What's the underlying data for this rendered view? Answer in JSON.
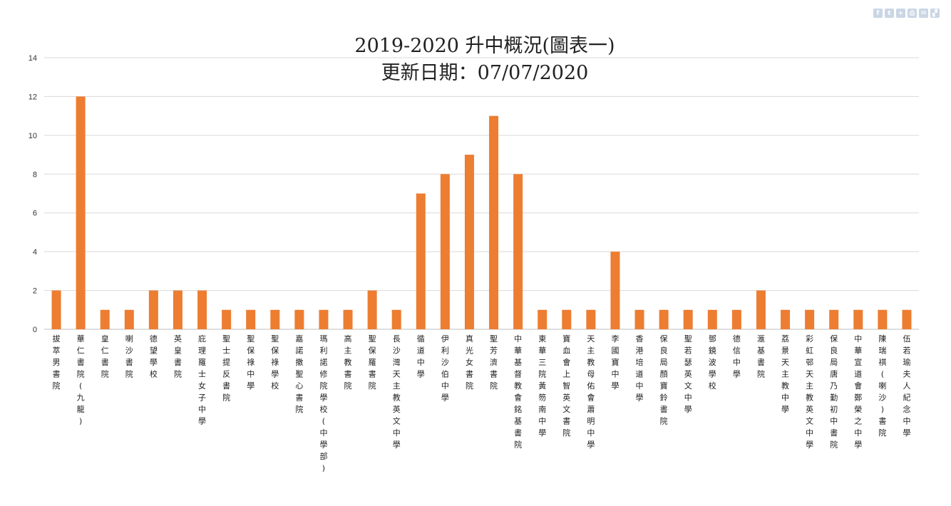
{
  "share_icons": [
    {
      "name": "facebook-icon",
      "glyph": "f"
    },
    {
      "name": "twitter-icon",
      "glyph": "t"
    },
    {
      "name": "add-icon",
      "glyph": "+"
    },
    {
      "name": "print-icon",
      "glyph": "⎙"
    },
    {
      "name": "email-icon",
      "glyph": "✉"
    },
    {
      "name": "share-icon",
      "glyph": "▞"
    }
  ],
  "chart_data": {
    "type": "bar",
    "title": "2019-2020 升中概況(圖表一)",
    "subtitle": "更新日期：07/07/2020",
    "xlabel": "",
    "ylabel": "",
    "ylim": [
      0,
      14
    ],
    "yticks": [
      0,
      2,
      4,
      6,
      8,
      10,
      12,
      14
    ],
    "grid": true,
    "bar_color": "#ed7d31",
    "categories": [
      "拔萃男書院",
      "華仁書院(九龍)",
      "皇仁書院",
      "喇沙書院",
      "德望學校",
      "英皇書院",
      "庇理羅士女子中學",
      "聖士提反書院",
      "聖保祿中學",
      "聖保祿學校",
      "嘉諾撒聖心書院",
      "瑪利諾修院學校(中學部)",
      "高主教書院",
      "聖保羅書院",
      "長沙灣天主教英文中學",
      "循道中學",
      "伊利沙伯中學",
      "真光女書院",
      "聖芳濟書院",
      "中華基督教會銘基書院",
      "東華三院黃笏南中學",
      "寶血會上智英文書院",
      "天主教母佑會蕭明中學",
      "李國寶中學",
      "香港培道中學",
      "保良局顏寶鈴書院",
      "聖若瑟英文中學",
      "鄧鏡波學校",
      "德信中學",
      "滙基書院",
      "荔景天主教中學",
      "彩虹邨天主教英文中學",
      "保良局唐乃勤初中書院",
      "中華宣道會鄭榮之中學",
      "陳瑞祺(喇沙)書院",
      "伍若瑜夫人紀念中學"
    ],
    "values": [
      2,
      12,
      1,
      1,
      2,
      2,
      2,
      1,
      1,
      1,
      1,
      1,
      1,
      2,
      1,
      7,
      8,
      9,
      11,
      8,
      1,
      1,
      1,
      4,
      1,
      1,
      1,
      1,
      1,
      2,
      1,
      1,
      1,
      1,
      1,
      1
    ]
  }
}
